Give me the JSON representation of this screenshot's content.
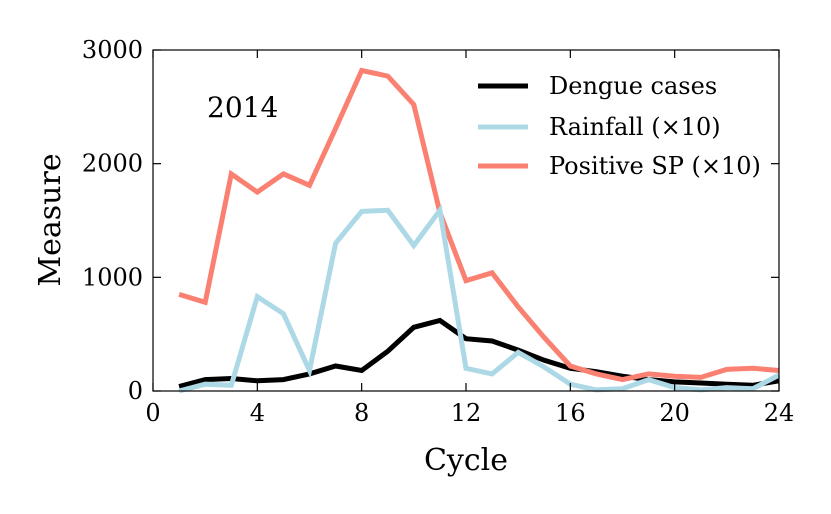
{
  "chart_data": {
    "type": "line",
    "title": "",
    "annotation": "2014",
    "xlabel": "Cycle",
    "ylabel": "Measure",
    "xlim": [
      0,
      24
    ],
    "ylim": [
      0,
      3000
    ],
    "xticks": [
      0,
      4,
      8,
      12,
      16,
      20,
      24
    ],
    "yticks": [
      0,
      1000,
      2000,
      3000
    ],
    "xtick_labels": [
      "0",
      "4",
      "8",
      "12",
      "16",
      "20",
      "24"
    ],
    "ytick_labels": [
      "0",
      "1000",
      "2000",
      "3000"
    ],
    "legend_position": "top-right",
    "x": [
      1,
      2,
      3,
      4,
      5,
      6,
      7,
      8,
      9,
      10,
      11,
      12,
      13,
      14,
      15,
      16,
      17,
      18,
      19,
      20,
      21,
      22,
      23,
      24
    ],
    "series": [
      {
        "name": "Dengue cases",
        "color": "#000000",
        "values": [
          40,
          100,
          110,
          90,
          100,
          150,
          220,
          180,
          350,
          560,
          620,
          460,
          440,
          360,
          270,
          200,
          170,
          130,
          100,
          80,
          70,
          60,
          50,
          90
        ]
      },
      {
        "name": "Rainfall (×10)",
        "color": "#add8e6",
        "values": [
          0,
          60,
          50,
          830,
          680,
          180,
          1300,
          1580,
          1590,
          1280,
          1590,
          200,
          150,
          340,
          210,
          60,
          10,
          20,
          100,
          30,
          10,
          30,
          20,
          140
        ]
      },
      {
        "name": "Positive SP (×10)",
        "color": "#fa8072",
        "values": [
          850,
          780,
          1910,
          1750,
          1910,
          1810,
          2310,
          2820,
          2770,
          2520,
          1570,
          970,
          1040,
          740,
          470,
          220,
          150,
          100,
          150,
          130,
          120,
          190,
          200,
          180
        ]
      }
    ]
  }
}
